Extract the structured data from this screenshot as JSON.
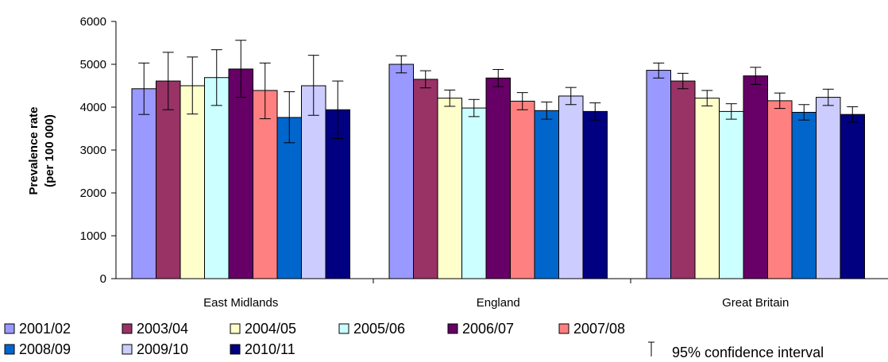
{
  "chart_data": {
    "type": "bar",
    "ylabel_line1": "Prevalence rate",
    "ylabel_line2": "(per 100 000)",
    "ylim": [
      0,
      6000
    ],
    "yticks": [
      0,
      1000,
      2000,
      3000,
      4000,
      5000,
      6000
    ],
    "grid": false,
    "legend_position": "bottom",
    "categories": [
      "East Midlands",
      "England",
      "Great Britain"
    ],
    "series": [
      {
        "name": "2001/02",
        "color": "#9999ff",
        "values": [
          4430,
          5000,
          4860
        ],
        "ci_low": [
          3830,
          4800,
          4680
        ],
        "ci_high": [
          5030,
          5200,
          5030
        ]
      },
      {
        "name": "2003/04",
        "color": "#993366",
        "values": [
          4610,
          4650,
          4610
        ],
        "ci_low": [
          3940,
          4450,
          4430
        ],
        "ci_high": [
          5280,
          4850,
          4790
        ]
      },
      {
        "name": "2004/05",
        "color": "#ffffcc",
        "values": [
          4500,
          4210,
          4210
        ],
        "ci_low": [
          3840,
          4020,
          4030
        ],
        "ci_high": [
          5170,
          4400,
          4390
        ]
      },
      {
        "name": "2005/06",
        "color": "#ccffff",
        "values": [
          4690,
          3980,
          3900
        ],
        "ci_low": [
          4040,
          3780,
          3720
        ],
        "ci_high": [
          5340,
          4180,
          4080
        ]
      },
      {
        "name": "2006/07",
        "color": "#660066",
        "values": [
          4890,
          4680,
          4730
        ],
        "ci_low": [
          4230,
          4480,
          4530
        ],
        "ci_high": [
          5560,
          4880,
          4930
        ]
      },
      {
        "name": "2007/08",
        "color": "#ff8080",
        "values": [
          4390,
          4140,
          4150
        ],
        "ci_low": [
          3730,
          3940,
          3970
        ],
        "ci_high": [
          5030,
          4340,
          4330
        ]
      },
      {
        "name": "2008/09",
        "color": "#0066cc",
        "values": [
          3760,
          3920,
          3880
        ],
        "ci_low": [
          3170,
          3720,
          3700
        ],
        "ci_high": [
          4360,
          4120,
          4060
        ]
      },
      {
        "name": "2009/10",
        "color": "#ccccff",
        "values": [
          4500,
          4260,
          4230
        ],
        "ci_low": [
          3810,
          4060,
          4040
        ],
        "ci_high": [
          5210,
          4460,
          4420
        ]
      },
      {
        "name": "2010/11",
        "color": "#000080",
        "values": [
          3940,
          3900,
          3830
        ],
        "ci_low": [
          3270,
          3700,
          3650
        ],
        "ci_high": [
          4610,
          4100,
          4010
        ]
      }
    ],
    "ci_legend_label": "95% confidence interval"
  }
}
